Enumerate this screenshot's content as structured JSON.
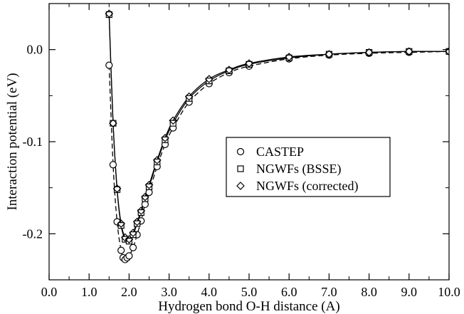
{
  "chart_data": {
    "type": "scatter",
    "xlabel": "Hydrogen bond O-H distance (A)",
    "ylabel": "Interaction potential (eV)",
    "xlim": [
      0,
      10
    ],
    "ylim": [
      -0.25,
      0.05
    ],
    "x_ticks": [
      0,
      1,
      2,
      3,
      4,
      5,
      6,
      7,
      8,
      9,
      10
    ],
    "x_tick_labels": [
      "0.0",
      "1.0",
      "2.0",
      "3.0",
      "4.0",
      "5.0",
      "6.0",
      "7.0",
      "8.0",
      "9.0",
      "10.0"
    ],
    "y_ticks": [
      -0.2,
      -0.1,
      0.0
    ],
    "y_tick_labels": [
      "-0.2",
      "-0.1",
      "0.0"
    ],
    "grid": false,
    "legend_position": "center-right",
    "series": [
      {
        "name": "CASTEP",
        "marker": "circle",
        "line": "dashed",
        "points": [
          [
            1.5,
            -0.017
          ],
          [
            1.6,
            -0.125
          ],
          [
            1.7,
            -0.187
          ],
          [
            1.8,
            -0.218
          ],
          [
            1.85,
            -0.226
          ],
          [
            1.9,
            -0.228
          ],
          [
            1.95,
            -0.226
          ],
          [
            2.0,
            -0.224
          ],
          [
            2.1,
            -0.215
          ],
          [
            2.2,
            -0.201
          ],
          [
            2.3,
            -0.186
          ],
          [
            2.4,
            -0.168
          ],
          [
            2.5,
            -0.155
          ],
          [
            2.7,
            -0.127
          ],
          [
            2.9,
            -0.103
          ],
          [
            3.1,
            -0.085
          ],
          [
            3.5,
            -0.057
          ],
          [
            4.0,
            -0.037
          ],
          [
            4.5,
            -0.025
          ],
          [
            5.0,
            -0.018
          ],
          [
            6.0,
            -0.01
          ],
          [
            7.0,
            -0.006
          ],
          [
            8.0,
            -0.004
          ],
          [
            9.0,
            -0.003
          ],
          [
            10.0,
            -0.002
          ]
        ]
      },
      {
        "name": "NGWFs (BSSE)",
        "marker": "square",
        "line": "solid",
        "points": [
          [
            1.5,
            0.038
          ],
          [
            1.6,
            -0.08
          ],
          [
            1.7,
            -0.152
          ],
          [
            1.8,
            -0.191
          ],
          [
            1.9,
            -0.206
          ],
          [
            2.0,
            -0.208
          ],
          [
            2.1,
            -0.201
          ],
          [
            2.2,
            -0.189
          ],
          [
            2.3,
            -0.177
          ],
          [
            2.4,
            -0.162
          ],
          [
            2.5,
            -0.149
          ],
          [
            2.7,
            -0.122
          ],
          [
            2.9,
            -0.098
          ],
          [
            3.1,
            -0.08
          ],
          [
            3.5,
            -0.053
          ],
          [
            4.0,
            -0.034
          ],
          [
            4.5,
            -0.023
          ],
          [
            5.0,
            -0.016
          ],
          [
            6.0,
            -0.009
          ],
          [
            7.0,
            -0.005
          ],
          [
            8.0,
            -0.003
          ],
          [
            9.0,
            -0.002
          ],
          [
            10.0,
            -0.002
          ]
        ]
      },
      {
        "name": "NGWFs (corrected)",
        "marker": "diamond",
        "line": "solid",
        "points": [
          [
            1.5,
            0.039
          ],
          [
            1.6,
            -0.08
          ],
          [
            1.7,
            -0.151
          ],
          [
            1.8,
            -0.189
          ],
          [
            1.9,
            -0.204
          ],
          [
            2.0,
            -0.206
          ],
          [
            2.1,
            -0.199
          ],
          [
            2.2,
            -0.187
          ],
          [
            2.3,
            -0.175
          ],
          [
            2.4,
            -0.16
          ],
          [
            2.5,
            -0.147
          ],
          [
            2.7,
            -0.12
          ],
          [
            2.9,
            -0.096
          ],
          [
            3.1,
            -0.077
          ],
          [
            3.5,
            -0.051
          ],
          [
            4.0,
            -0.032
          ],
          [
            4.5,
            -0.022
          ],
          [
            5.0,
            -0.015
          ],
          [
            6.0,
            -0.008
          ],
          [
            7.0,
            -0.005
          ],
          [
            8.0,
            -0.003
          ],
          [
            9.0,
            -0.002
          ],
          [
            10.0,
            -0.002
          ]
        ]
      }
    ]
  }
}
